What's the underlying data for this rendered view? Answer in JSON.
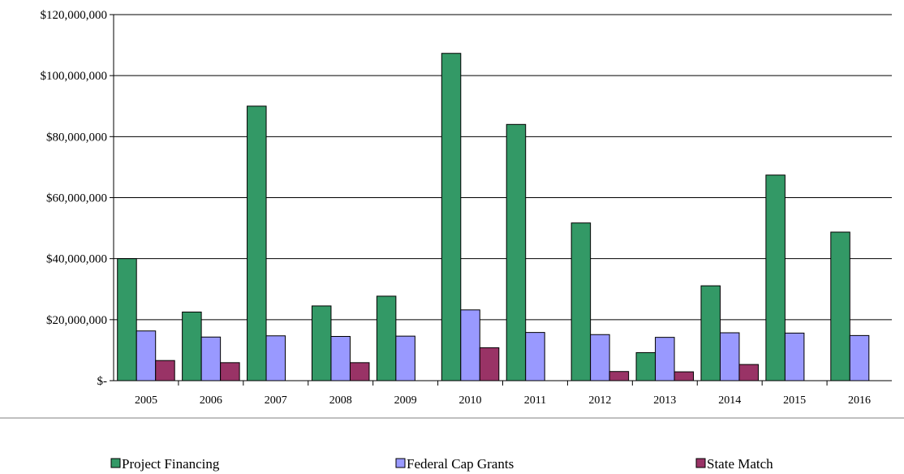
{
  "chart_data": {
    "type": "bar",
    "title": "",
    "xlabel": "",
    "ylabel": "",
    "categories": [
      "2005",
      "2006",
      "2007",
      "2008",
      "2009",
      "2010",
      "2011",
      "2012",
      "2013",
      "2014",
      "2015",
      "2016"
    ],
    "series": [
      {
        "name": "Project Financing",
        "color": "#339966",
        "values": [
          40000000,
          22500000,
          90000000,
          24500000,
          27700000,
          107300000,
          84000000,
          51700000,
          9200000,
          31100000,
          67400000,
          48700000
        ]
      },
      {
        "name": "Federal Cap Grants",
        "color": "#9999ff",
        "values": [
          16300000,
          14300000,
          14700000,
          14500000,
          14600000,
          23200000,
          15800000,
          15100000,
          14200000,
          15700000,
          15600000,
          14800000
        ]
      },
      {
        "name": "State Match",
        "color": "#993366",
        "values": [
          6600000,
          5900000,
          0,
          5900000,
          0,
          10800000,
          0,
          3000000,
          2900000,
          5300000,
          0,
          0
        ]
      }
    ],
    "ylim": [
      0,
      120000000
    ],
    "yticks": [
      0,
      20000000,
      40000000,
      60000000,
      80000000,
      100000000,
      120000000
    ],
    "ytick_labels": [
      "$-",
      "$20,000,000",
      "$40,000,000",
      "$60,000,000",
      "$80,000,000",
      "$100,000,000",
      "$120,000,000"
    ],
    "grid": true,
    "legend_position": "bottom"
  }
}
